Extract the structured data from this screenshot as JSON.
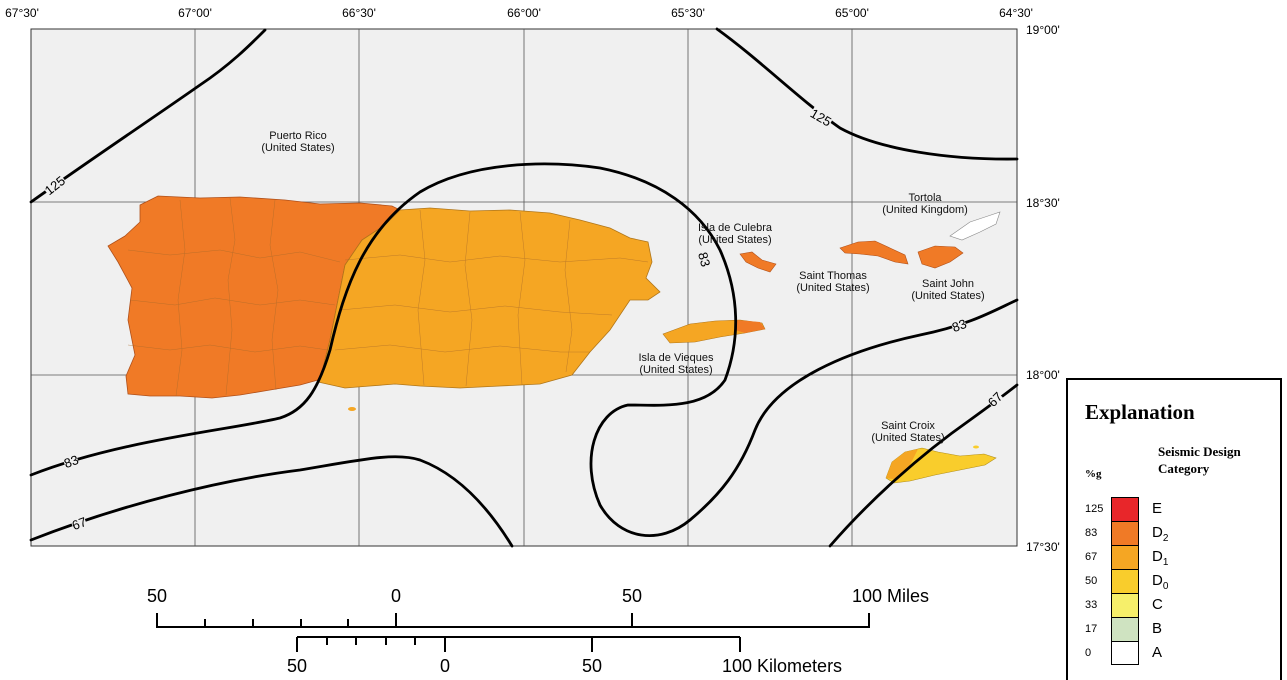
{
  "map": {
    "longitude_labels": [
      "67°30'",
      "67°00'",
      "66°30'",
      "66°00'",
      "65°30'",
      "65°00'",
      "64°30'"
    ],
    "latitude_labels": [
      "19°00'",
      "18°30'",
      "18°00'",
      "17°30'"
    ],
    "places": [
      {
        "name": "Puerto Rico",
        "country": "(United States)"
      },
      {
        "name": "Tortola",
        "country": "(United Kingdom)"
      },
      {
        "name": "Isla  de  Culebra",
        "country": "(United States)"
      },
      {
        "name": "Saint Thomas",
        "country": "(United States)"
      },
      {
        "name": "Saint  John",
        "country": "(United States)"
      },
      {
        "name": "Isla de Vieques",
        "country": "(United States)"
      },
      {
        "name": "Saint Croix",
        "country": "(United States)"
      }
    ],
    "contour_labels": [
      "125",
      "125",
      "83",
      "83",
      "83",
      "67",
      "67"
    ]
  },
  "scale": {
    "miles": {
      "ticks": [
        "50",
        "0",
        "50"
      ],
      "end_label": "100 Miles"
    },
    "kilometers": {
      "ticks": [
        "50",
        "0",
        "50"
      ],
      "end_label": "100 Kilometers"
    }
  },
  "legend": {
    "title": "Explanation",
    "category_heading_1": "Seismic Design",
    "category_heading_2": "Category",
    "unit": "%g",
    "rows": [
      {
        "value": "125",
        "category": "E",
        "sub": "",
        "color": "#e8262a"
      },
      {
        "value": "83",
        "category": "D",
        "sub": "2",
        "color": "#f07a26"
      },
      {
        "value": "67",
        "category": "D",
        "sub": "1",
        "color": "#f5a623"
      },
      {
        "value": "50",
        "category": "D",
        "sub": "0",
        "color": "#f9cd2c"
      },
      {
        "value": "33",
        "category": "C",
        "sub": "",
        "color": "#f6ef6a"
      },
      {
        "value": "17",
        "category": "B",
        "sub": "",
        "color": "#cfe3c1"
      },
      {
        "value": "0",
        "category": "A",
        "sub": "",
        "color": "#ffffff"
      }
    ]
  },
  "colors": {
    "map_background": "#f0f0f0",
    "category_d2": "#f07a26",
    "category_d1": "#f5a623",
    "category_d0": "#f9cd2c",
    "contour": "#000000",
    "grid": "#555555"
  }
}
